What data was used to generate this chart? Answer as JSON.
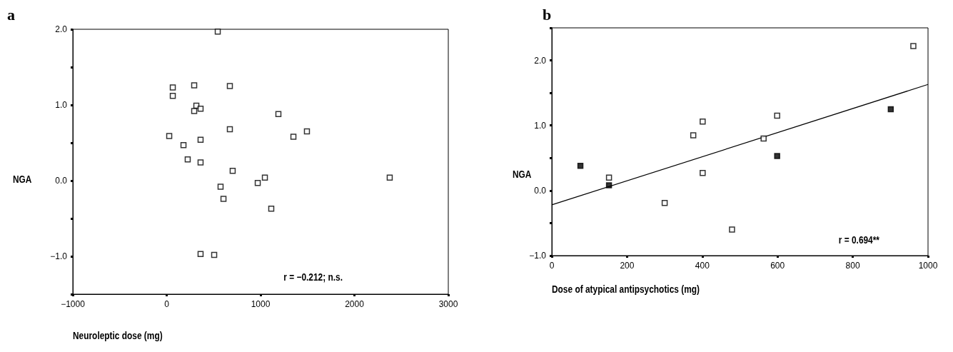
{
  "chart_data": [
    {
      "type": "scatter",
      "title": "a",
      "xlabel": "Neuroleptic dose (mg)",
      "ylabel": "NGA",
      "annotations": [
        "r = −0.212; n.s."
      ],
      "marker": "square",
      "grid": false,
      "xlim": [
        -1000,
        3000
      ],
      "xticks": [
        {
          "value": -1000,
          "label": "−1000"
        },
        0,
        1000,
        2000,
        3000
      ],
      "ylim": [
        -1.5,
        2.0
      ],
      "yticks": [
        {
          "value": -1.5,
          "label": null
        },
        {
          "value": -1.0,
          "label": "−1.0"
        },
        {
          "value": -0.5,
          "label": null
        },
        {
          "value": 0,
          "label": "0.0"
        },
        {
          "value": 0.5,
          "label": null
        },
        {
          "value": 1.0,
          "label": "1.0"
        },
        {
          "value": 1.5,
          "label": null
        },
        {
          "value": 2.0,
          "label": "2.0"
        }
      ],
      "series": [
        {
          "color": "#ffffff",
          "x": [
            544,
            65,
            65,
            293,
            673,
            316,
            361,
            293,
            1190,
            673,
            27,
            1350,
            1494,
            179,
            361,
            224,
            361,
            703,
            574,
            970,
            1046,
            605,
            1114,
            2376,
            361,
            506
          ],
          "values": [
            1.97,
            1.23,
            1.12,
            1.26,
            1.25,
            0.99,
            0.95,
            0.92,
            0.88,
            0.68,
            0.59,
            0.58,
            0.65,
            0.47,
            0.54,
            0.28,
            0.24,
            0.13,
            -0.08,
            -0.03,
            0.04,
            -0.24,
            -0.37,
            0.04,
            -0.97,
            -0.98
          ]
        }
      ]
    },
    {
      "type": "scatter",
      "title": "b",
      "xlabel": "Dose of atypical antipsychotics (mg)",
      "ylabel": "NGA",
      "annotations": [
        "r = 0.694**"
      ],
      "marker": "square",
      "grid": false,
      "xlim": [
        0,
        1000
      ],
      "xticks": [
        0,
        200,
        400,
        600,
        800,
        1000
      ],
      "ylim": [
        -1.0,
        2.5
      ],
      "yticks": [
        {
          "value": -1.0,
          "label": "−1.0"
        },
        {
          "value": -0.5,
          "label": null
        },
        {
          "value": 0,
          "label": "0.0"
        },
        {
          "value": 0.5,
          "label": null
        },
        {
          "value": 1.0,
          "label": "1.0"
        },
        {
          "value": 1.5,
          "label": null
        },
        {
          "value": 2.0,
          "label": "2.0"
        },
        {
          "value": 2.5,
          "label": null
        }
      ],
      "series": [
        {
          "color": "#ffffff",
          "x": [
            961,
            599,
            401,
            376,
            563,
            401,
            152,
            300,
            479
          ],
          "values": [
            2.22,
            1.15,
            1.06,
            0.85,
            0.8,
            0.27,
            0.2,
            -0.19,
            -0.6
          ]
        },
        {
          "color": "#000000",
          "x": [
            76,
            152,
            599,
            901
          ],
          "values": [
            0.38,
            0.08,
            0.53,
            1.25
          ]
        },
        {
          "type": "line",
          "marker": "none",
          "color": "#000000",
          "x": [
            0,
            1000
          ],
          "values": [
            -0.22,
            1.63
          ]
        }
      ]
    }
  ]
}
